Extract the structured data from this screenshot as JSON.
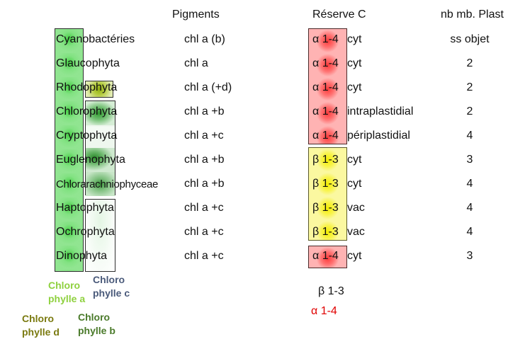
{
  "headers": {
    "pigments": "Pigments",
    "reserve": "Réserve C",
    "membranes": "nb mb. Plast"
  },
  "rows": [
    {
      "taxon": "Cyanobactéries",
      "pigments": "chl a (b)",
      "alpha_beta": "α 1-4",
      "loc": "cyt",
      "nb": "ss objet"
    },
    {
      "taxon": "Glaucophyta",
      "pigments": "chl a",
      "alpha_beta": "α 1-4",
      "loc": "cyt",
      "nb": "2"
    },
    {
      "taxon": "Rhodophyta",
      "pigments": "chl a (+d)",
      "alpha_beta": "α 1-4",
      "loc": "cyt",
      "nb": "2"
    },
    {
      "taxon": "Chlorophyta",
      "pigments": "chl a +b",
      "alpha_beta": "α 1-4",
      "loc": "intraplastidial",
      "nb": "2"
    },
    {
      "taxon": "Cryptophyta",
      "pigments": "chl a +c",
      "alpha_beta": "α 1-4",
      "loc": "périplastidial",
      "nb": "4"
    },
    {
      "taxon": "Euglenophyta",
      "pigments": "chl a +b",
      "alpha_beta": "β 1-3",
      "loc": "cyt",
      "nb": "3"
    },
    {
      "taxon": "Chlorarachniophyceae",
      "pigments": "chl a +b",
      "alpha_beta": "β 1-3",
      "loc": "cyt",
      "nb": "4"
    },
    {
      "taxon": "Haptophyta",
      "pigments": "chl a +c",
      "alpha_beta": "β 1-3",
      "loc": "vac",
      "nb": "4"
    },
    {
      "taxon": "Ochrophyta",
      "pigments": "chl a +c",
      "alpha_beta": "β 1-3",
      "loc": "vac",
      "nb": "4"
    },
    {
      "taxon": "Dinophyta",
      "pigments": "chl a +c",
      "alpha_beta": "α 1-4",
      "loc": "cyt",
      "nb": "3"
    }
  ],
  "legend": {
    "chl_a": [
      "Chloro",
      "phylle a"
    ],
    "chl_c": [
      "Chloro",
      "phylle c"
    ],
    "chl_d": [
      "Chloro",
      "phylle d"
    ],
    "chl_b": [
      "Chloro",
      "phylle b"
    ],
    "beta": "β 1-3",
    "alpha": "α 1-4"
  },
  "colors": {
    "chl_a_label": "#8fd13f",
    "chl_c_label": "#4a5a7a",
    "chl_d_label": "#7a7a10",
    "chl_b_label": "#4a7a2a",
    "alpha_label": "#e00000",
    "beta_label": "#111111"
  }
}
